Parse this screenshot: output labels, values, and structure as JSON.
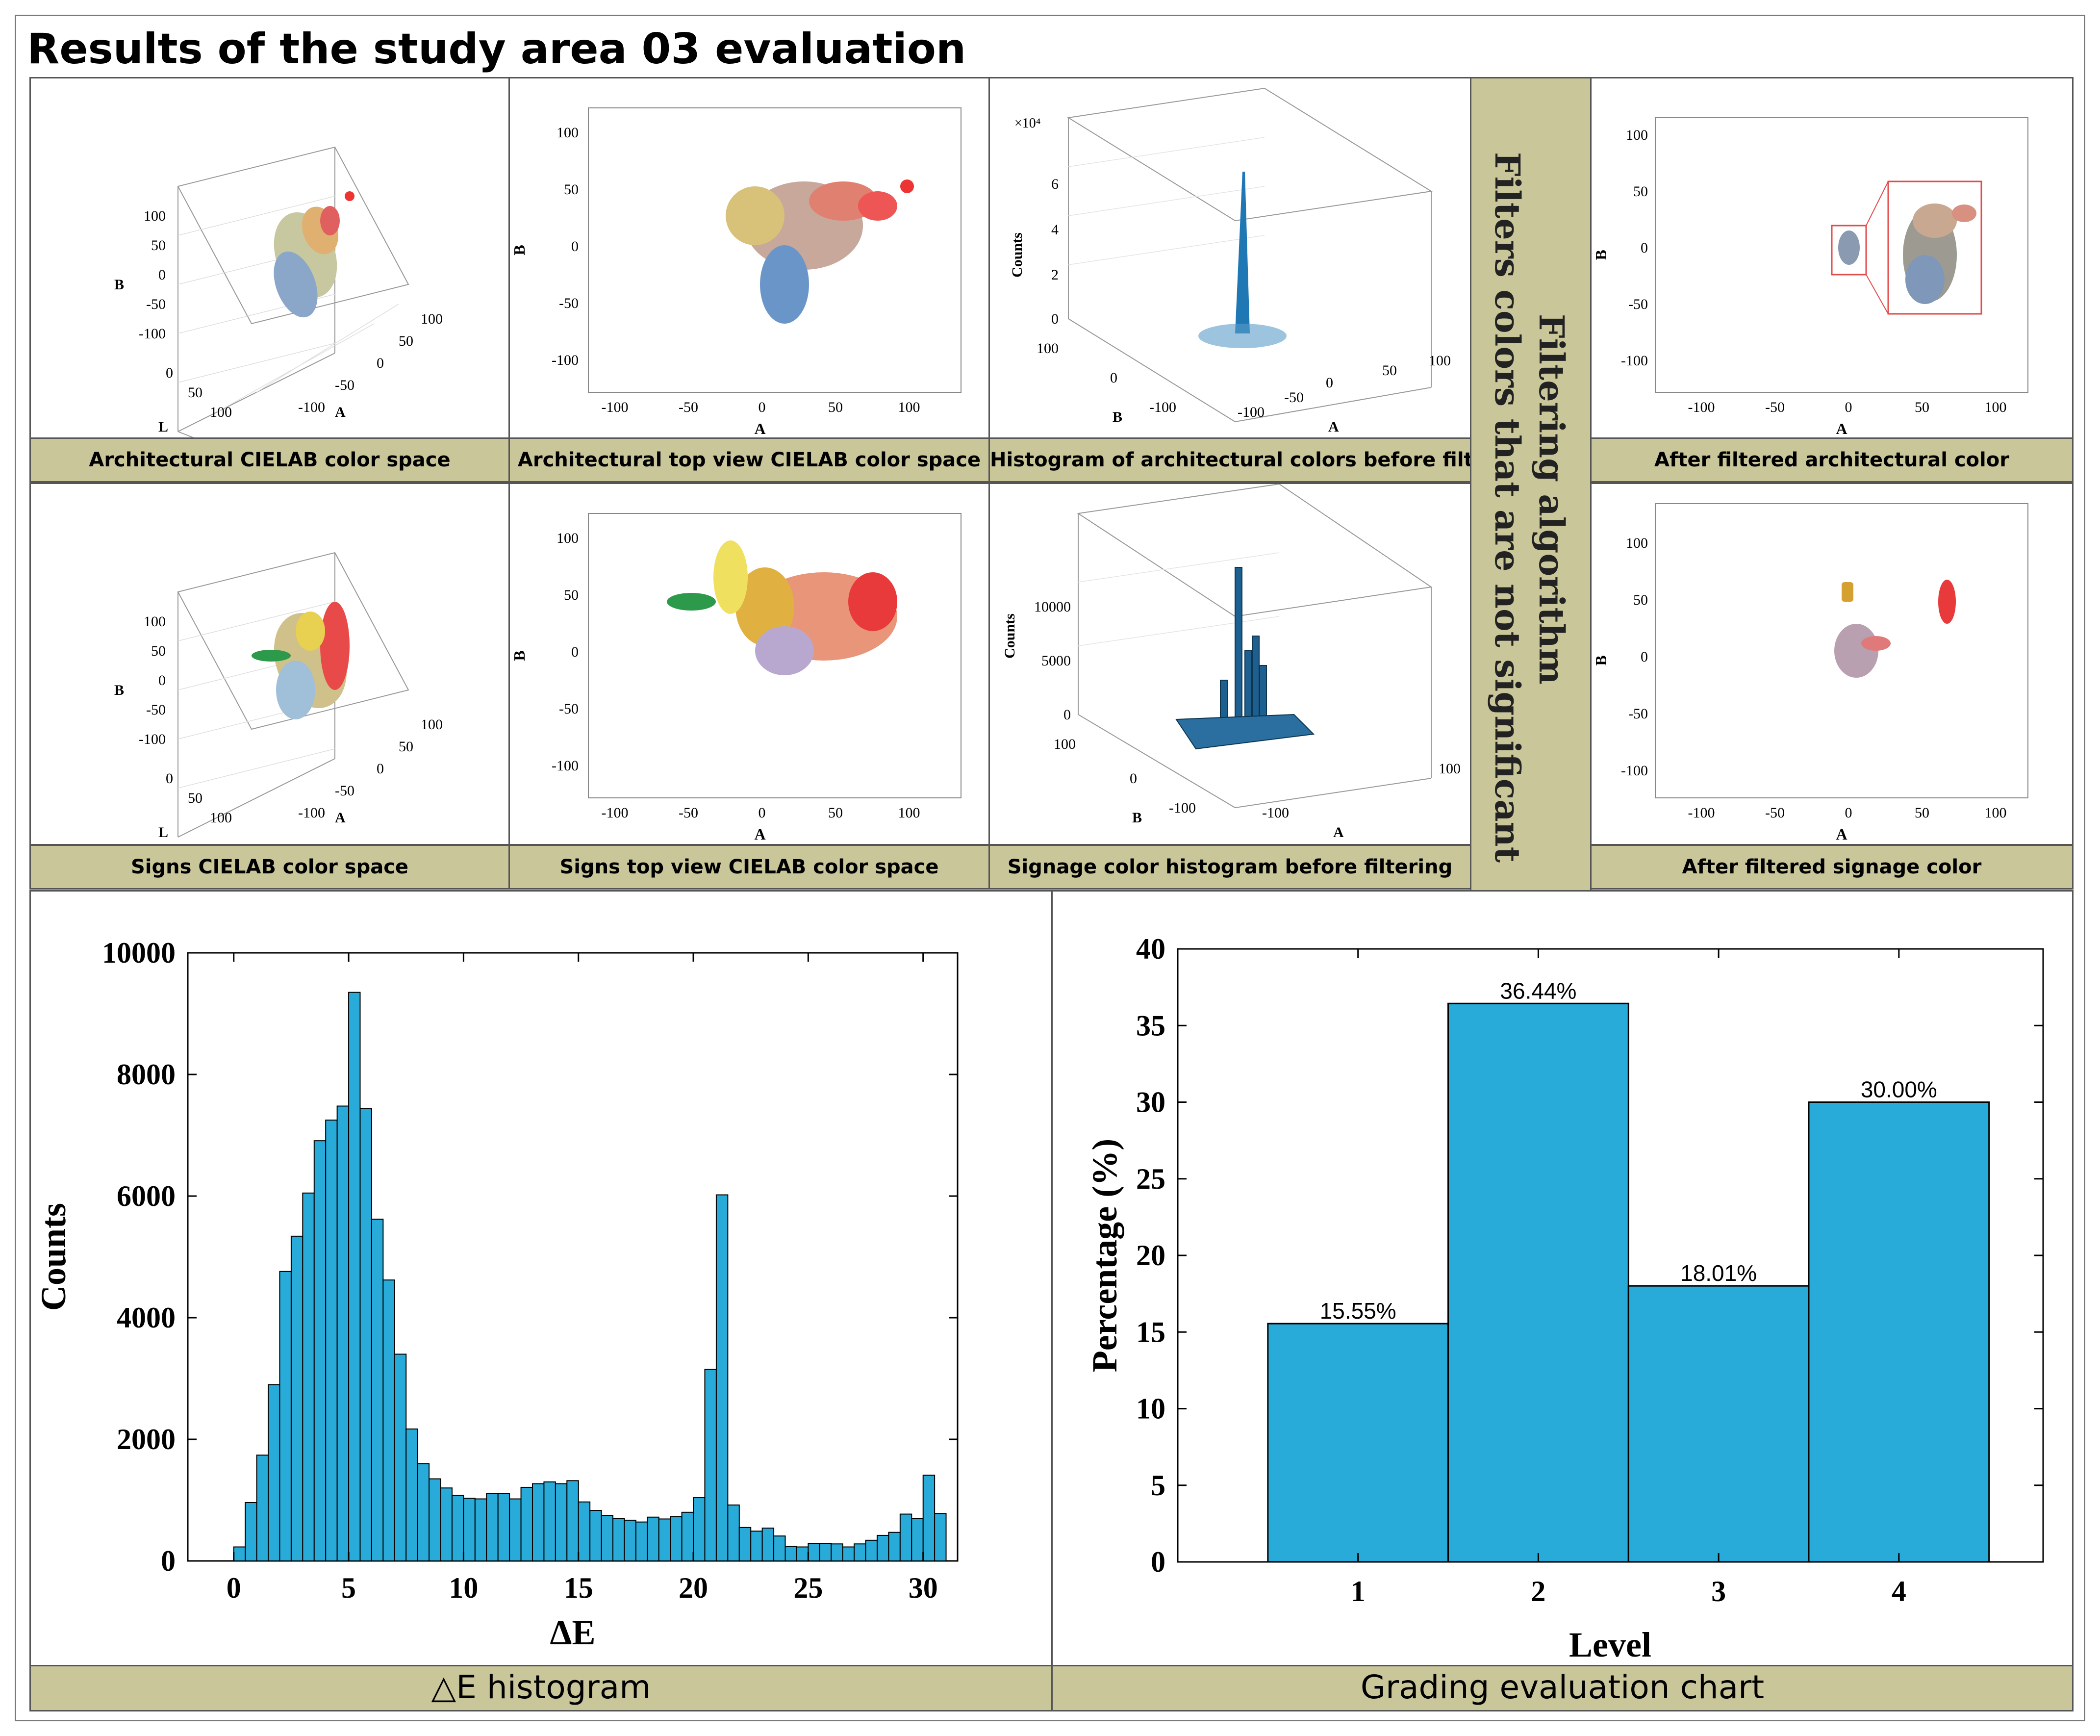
{
  "title": "Results of the study area 03 evaluation",
  "captions": {
    "arch_cielab": "Architectural CIELAB color space",
    "arch_top": "Architectural top view CIELAB color space",
    "arch_hist": "Histogram of architectural colors before filtering",
    "arch_after": "After filtered architectural color",
    "sign_cielab": "Signs CIELAB color space",
    "sign_top": "Signs top view CIELAB color space",
    "sign_hist": "Signage color histogram before filtering",
    "sign_after": "After filtered signage color",
    "de_hist": "△E histogram",
    "grading": "Grading  evaluation chart"
  },
  "filter": {
    "line1": "Filtering algorithm",
    "line2": "Filters colors that are not significant"
  },
  "small_plots": {
    "axis_A": "A",
    "axis_B": "B",
    "axis_L": "L",
    "counts": "Counts",
    "exp": "×10⁴",
    "top_x_ticks": [
      "-100",
      "-50",
      "0",
      "50",
      "100"
    ],
    "top_y_ticks": [
      "100",
      "50",
      "0",
      "-50",
      "-100"
    ],
    "cube_B_ticks": [
      "100",
      "50",
      "0",
      "-50",
      "-100"
    ],
    "cube_L_ticks": [
      "0",
      "50",
      "100"
    ],
    "cube_A_ticks": [
      "100",
      "50",
      "0",
      "-50",
      "-100"
    ],
    "hist_arch_z_ticks": [
      "6",
      "4",
      "2",
      "0"
    ],
    "hist_sign_z_ticks": [
      "10000",
      "5000",
      "0"
    ],
    "hist_B_ticks": [
      "100",
      "0",
      "-100"
    ],
    "hist_A_ticks": [
      "100",
      "50",
      "0",
      "-50",
      "-100"
    ]
  },
  "colors": {
    "bar": "#29abd9",
    "caption_bg": "#c9c69a",
    "highlight": "#e34a4a"
  },
  "chart_data": [
    {
      "type": "bar",
      "title": "",
      "xlabel": "ΔE",
      "ylabel": "Counts",
      "xlim": [
        -2,
        31.5
      ],
      "ylim": [
        0,
        10000
      ],
      "xticks": [
        0,
        5,
        10,
        15,
        20,
        25,
        30
      ],
      "yticks": [
        0,
        2000,
        4000,
        6000,
        8000,
        10000
      ],
      "bin_width": 0.5,
      "bin_starts": [
        0,
        0.5,
        1,
        1.5,
        2,
        2.5,
        3,
        3.5,
        4,
        4.5,
        5,
        5.5,
        6,
        6.5,
        7,
        7.5,
        8,
        8.5,
        9,
        9.5,
        10,
        10.5,
        11,
        11.5,
        12,
        12.5,
        13,
        13.5,
        14,
        14.5,
        15,
        15.5,
        16,
        16.5,
        17,
        17.5,
        18,
        18.5,
        19,
        19.5,
        20,
        20.5,
        21,
        21.5,
        22,
        22.5,
        23,
        23.5,
        24,
        24.5,
        25,
        25.5,
        26,
        26.5,
        27,
        27.5,
        28,
        28.5,
        29,
        29.5,
        30,
        30.5
      ],
      "values": [
        230,
        960,
        1740,
        2900,
        4760,
        5340,
        6050,
        6910,
        7250,
        7480,
        9350,
        7440,
        5620,
        4620,
        3400,
        2170,
        1600,
        1350,
        1200,
        1080,
        1030,
        1020,
        1110,
        1110,
        1020,
        1210,
        1270,
        1300,
        1270,
        1320,
        970,
        830,
        750,
        700,
        670,
        640,
        720,
        690,
        730,
        800,
        1040,
        3150,
        6020,
        920,
        550,
        490,
        540,
        410,
        240,
        230,
        290,
        290,
        280,
        230,
        280,
        340,
        420,
        470,
        770,
        700,
        1410,
        780
      ]
    },
    {
      "type": "bar",
      "title": "",
      "xlabel": "Level",
      "ylabel": "Percentage (%)",
      "categories": [
        "1",
        "2",
        "3",
        "4"
      ],
      "values": [
        15.55,
        36.44,
        18.01,
        30.0
      ],
      "data_labels": [
        "15.55%",
        "36.44%",
        "18.01%",
        "30.00%"
      ],
      "ylim": [
        0,
        40
      ],
      "yticks": [
        0,
        5,
        10,
        15,
        20,
        25,
        30,
        35,
        40
      ]
    }
  ]
}
